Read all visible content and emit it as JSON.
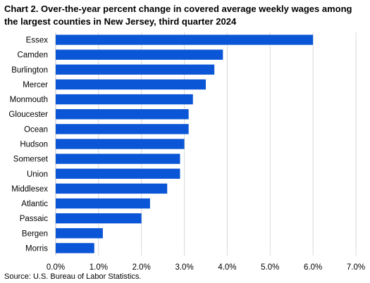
{
  "chart_data": {
    "type": "bar",
    "orientation": "horizontal",
    "title": "Chart 2. Over-the-year percent change in covered average weekly wages among the largest counties in New Jersey, third quarter 2024",
    "categories": [
      "Essex",
      "Camden",
      "Burlington",
      "Mercer",
      "Monmouth",
      "Gloucester",
      "Ocean",
      "Hudson",
      "Somerset",
      "Union",
      "Middlesex",
      "Atlantic",
      "Passaic",
      "Bergen",
      "Morris"
    ],
    "values": [
      6.0,
      3.9,
      3.7,
      3.5,
      3.2,
      3.1,
      3.1,
      3.0,
      2.9,
      2.9,
      2.6,
      2.2,
      2.0,
      1.1,
      0.9
    ],
    "xlim": [
      0,
      7
    ],
    "x_ticks": [
      0,
      1,
      2,
      3,
      4,
      5,
      6,
      7
    ],
    "x_tick_labels": [
      "0.0%",
      "1.0%",
      "2.0%",
      "3.0%",
      "4.0%",
      "5.0%",
      "6.0%",
      "7.0%"
    ],
    "xlabel": "",
    "ylabel": "",
    "grid": "vertical",
    "bar_color": "#0b56d6",
    "grid_color": "#d9d9d9"
  },
  "source": "Source: U.S. Bureau of Labor Statistics."
}
